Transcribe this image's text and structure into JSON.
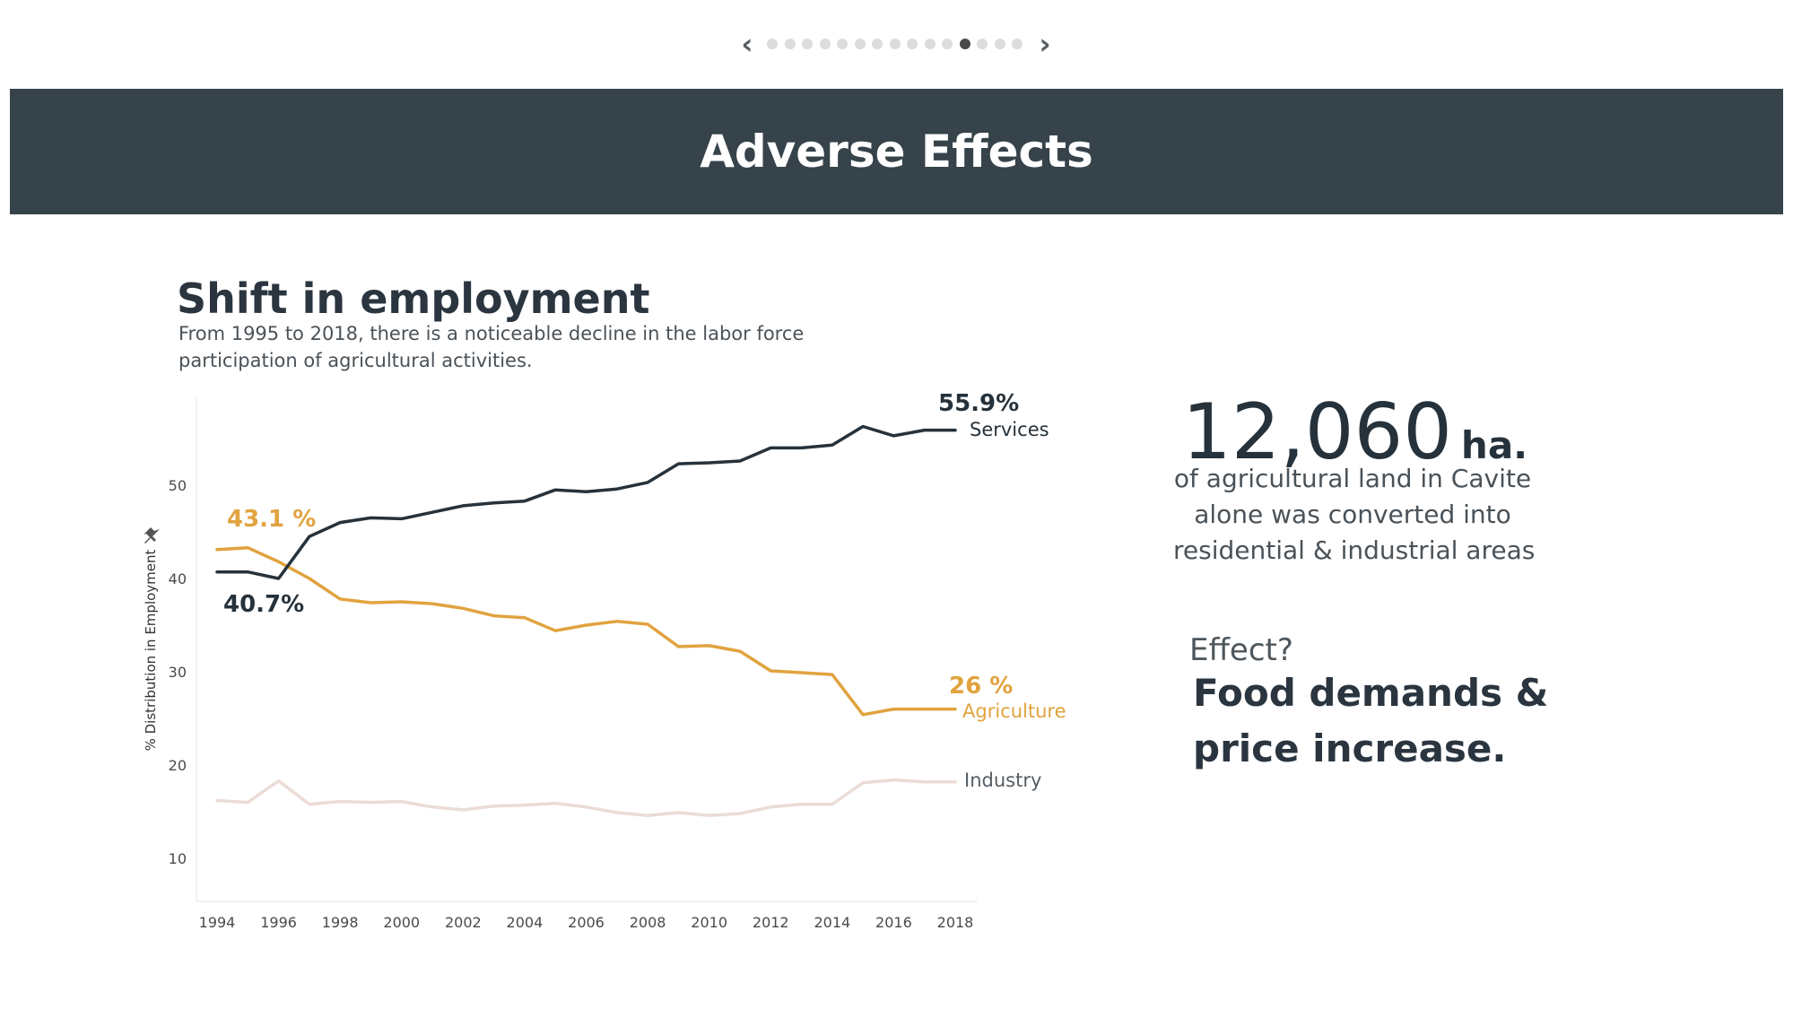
{
  "pager": {
    "prev_icon": "chevron-left-icon",
    "next_icon": "chevron-right-icon",
    "dot_count": 15,
    "active_index": 11
  },
  "header": {
    "title": "Adverse Effects"
  },
  "chart": {
    "title": "Shift in employment",
    "subtitle_lines": [
      "From 1995 to 2018, there is a noticeable decline in the labor force",
      "participation of agricultural activities."
    ]
  },
  "chart_data": {
    "type": "line",
    "ylabel": "% Distribution in Employment",
    "xlim": [
      1994,
      2018
    ],
    "ylim": [
      5,
      58
    ],
    "x_ticks": [
      1994,
      1996,
      1998,
      2000,
      2002,
      2004,
      2006,
      2008,
      2010,
      2012,
      2014,
      2016,
      2018
    ],
    "y_ticks": [
      10,
      20,
      30,
      40,
      50
    ],
    "grid": false,
    "series": [
      {
        "name": "Services",
        "color": "#26323b",
        "x": [
          1994,
          1995,
          1996,
          1997,
          1998,
          1999,
          2000,
          2001,
          2002,
          2003,
          2004,
          2005,
          2006,
          2007,
          2008,
          2009,
          2010,
          2011,
          2012,
          2013,
          2014,
          2015,
          2016,
          2017,
          2018
        ],
        "values": [
          40.7,
          40.7,
          40.0,
          44.5,
          46.0,
          46.5,
          46.4,
          47.1,
          47.8,
          48.1,
          48.3,
          49.5,
          49.3,
          49.6,
          50.3,
          52.3,
          52.4,
          52.6,
          54.0,
          54.0,
          54.3,
          56.3,
          55.3,
          55.9,
          55.9
        ],
        "annotation_value": "55.9%",
        "annotation_start": "40.7%"
      },
      {
        "name": "Agriculture",
        "color": "#e1a33f",
        "x": [
          1994,
          1995,
          1996,
          1997,
          1998,
          1999,
          2000,
          2001,
          2002,
          2003,
          2004,
          2005,
          2006,
          2007,
          2008,
          2009,
          2010,
          2011,
          2012,
          2013,
          2014,
          2015,
          2016,
          2017,
          2018
        ],
        "values": [
          43.1,
          43.3,
          41.8,
          40.0,
          37.8,
          37.4,
          37.5,
          37.3,
          36.8,
          36.0,
          35.8,
          34.4,
          35.0,
          35.4,
          35.1,
          32.7,
          32.8,
          32.2,
          30.1,
          29.9,
          29.7,
          25.4,
          26.0,
          26.0,
          26.0
        ],
        "annotation_value": "26 %",
        "annotation_start": "43.1 %"
      },
      {
        "name": "Industry",
        "color": "#ebdcd6",
        "x": [
          1994,
          1995,
          1996,
          1997,
          1998,
          1999,
          2000,
          2001,
          2002,
          2003,
          2004,
          2005,
          2006,
          2007,
          2008,
          2009,
          2010,
          2011,
          2012,
          2013,
          2014,
          2015,
          2016,
          2017,
          2018
        ],
        "values": [
          16.2,
          16.0,
          18.3,
          15.8,
          16.1,
          16.0,
          16.1,
          15.5,
          15.2,
          15.6,
          15.7,
          15.9,
          15.5,
          14.9,
          14.6,
          14.9,
          14.6,
          14.8,
          15.5,
          15.8,
          15.8,
          18.1,
          18.4,
          18.2,
          18.2
        ]
      }
    ]
  },
  "stat": {
    "number": "12,060",
    "unit": "ha.",
    "description_lines": [
      "of agricultural land in Cavite",
      "alone was converted into",
      "residential & industrial areas"
    ]
  },
  "effect": {
    "label": "Effect?",
    "text_lines": [
      "Food demands &",
      "price increase."
    ]
  }
}
